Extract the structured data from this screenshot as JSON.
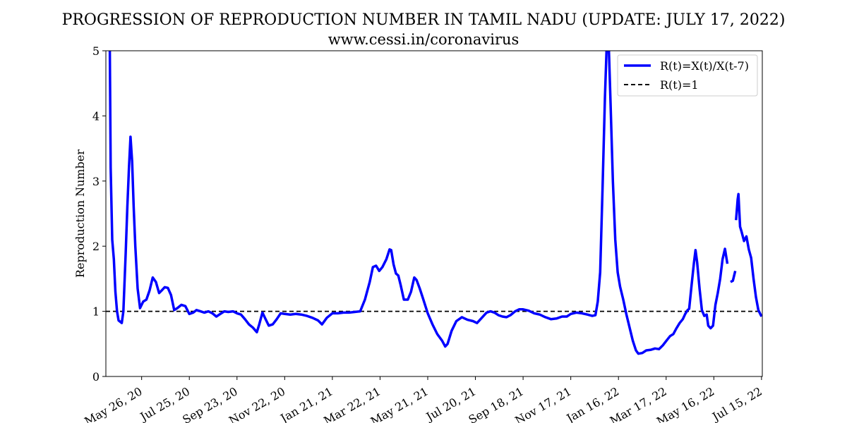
{
  "chart_data": {
    "type": "line",
    "title": "PROGRESSION OF REPRODUCTION NUMBER IN TAMIL NADU (UPDATE: JULY 17, 2022)",
    "subtitle": "www.cessi.in/coronavirus",
    "ylabel": "Reproduction Number",
    "xlabel": "",
    "ylim": [
      0,
      5
    ],
    "yticks": [
      0,
      1,
      2,
      3,
      4,
      5
    ],
    "x_range": [
      "2020-04-11",
      "2022-07-16"
    ],
    "xticks": [
      {
        "date": "2020-05-26",
        "label": "May 26, 20"
      },
      {
        "date": "2020-07-25",
        "label": "Jul 25, 20"
      },
      {
        "date": "2020-09-23",
        "label": "Sep 23, 20"
      },
      {
        "date": "2020-11-22",
        "label": "Nov 22, 20"
      },
      {
        "date": "2021-01-21",
        "label": "Jan 21, 21"
      },
      {
        "date": "2021-03-22",
        "label": "Mar 22, 21"
      },
      {
        "date": "2021-05-21",
        "label": "May 21, 21"
      },
      {
        "date": "2021-07-20",
        "label": "Jul 20, 21"
      },
      {
        "date": "2021-09-18",
        "label": "Sep 18, 21"
      },
      {
        "date": "2021-11-17",
        "label": "Nov 17, 21"
      },
      {
        "date": "2022-01-16",
        "label": "Jan 16, 22"
      },
      {
        "date": "2022-03-17",
        "label": "Mar 17, 22"
      },
      {
        "date": "2022-05-16",
        "label": "May 16, 22"
      },
      {
        "date": "2022-07-15",
        "label": "Jul 15, 22"
      }
    ],
    "legend_position": "top-right",
    "series": [
      {
        "name": "R(t)=X(t)/X(t-7)",
        "color": "#0000ff",
        "style": "solid",
        "segments": [
          [
            [
              "2020-04-16",
              5.0
            ],
            [
              "2020-04-17",
              3.2
            ],
            [
              "2020-04-19",
              2.1
            ],
            [
              "2020-04-21",
              1.8
            ],
            [
              "2020-04-23",
              1.3
            ],
            [
              "2020-04-25",
              1.0
            ],
            [
              "2020-04-27",
              0.86
            ],
            [
              "2020-04-29",
              0.84
            ],
            [
              "2020-05-01",
              0.82
            ],
            [
              "2020-05-03",
              1.0
            ],
            [
              "2020-05-06",
              1.9
            ],
            [
              "2020-05-08",
              2.6
            ],
            [
              "2020-05-10",
              3.2
            ],
            [
              "2020-05-12",
              3.68
            ],
            [
              "2020-05-14",
              3.3
            ],
            [
              "2020-05-16",
              2.6
            ],
            [
              "2020-05-18",
              2.0
            ],
            [
              "2020-05-21",
              1.35
            ],
            [
              "2020-05-24",
              1.05
            ],
            [
              "2020-05-28",
              1.15
            ],
            [
              "2020-06-01",
              1.18
            ],
            [
              "2020-06-05",
              1.32
            ],
            [
              "2020-06-09",
              1.52
            ],
            [
              "2020-06-13",
              1.45
            ],
            [
              "2020-06-17",
              1.28
            ],
            [
              "2020-06-21",
              1.33
            ],
            [
              "2020-06-24",
              1.37
            ],
            [
              "2020-06-28",
              1.36
            ],
            [
              "2020-07-02",
              1.25
            ],
            [
              "2020-07-06",
              1.02
            ],
            [
              "2020-07-10",
              1.05
            ],
            [
              "2020-07-15",
              1.1
            ],
            [
              "2020-07-20",
              1.08
            ],
            [
              "2020-07-25",
              0.96
            ],
            [
              "2020-07-30",
              0.98
            ],
            [
              "2020-08-03",
              1.02
            ],
            [
              "2020-08-08",
              1.0
            ],
            [
              "2020-08-13",
              0.98
            ],
            [
              "2020-08-18",
              1.0
            ],
            [
              "2020-08-23",
              0.97
            ],
            [
              "2020-08-28",
              0.92
            ],
            [
              "2020-09-02",
              0.96
            ],
            [
              "2020-09-07",
              1.0
            ],
            [
              "2020-09-12",
              0.99
            ],
            [
              "2020-09-18",
              1.0
            ],
            [
              "2020-09-23",
              0.97
            ],
            [
              "2020-09-28",
              0.95
            ],
            [
              "2020-10-03",
              0.88
            ],
            [
              "2020-10-08",
              0.8
            ],
            [
              "2020-10-13",
              0.75
            ],
            [
              "2020-10-18",
              0.68
            ],
            [
              "2020-10-21",
              0.8
            ],
            [
              "2020-10-25",
              0.98
            ],
            [
              "2020-10-29",
              0.88
            ],
            [
              "2020-11-02",
              0.78
            ],
            [
              "2020-11-07",
              0.8
            ],
            [
              "2020-11-12",
              0.88
            ],
            [
              "2020-11-17",
              0.97
            ],
            [
              "2020-11-22",
              0.96
            ],
            [
              "2020-11-29",
              0.95
            ],
            [
              "2020-12-06",
              0.96
            ],
            [
              "2020-12-13",
              0.95
            ],
            [
              "2020-12-20",
              0.93
            ],
            [
              "2020-12-27",
              0.9
            ],
            [
              "2021-01-03",
              0.86
            ],
            [
              "2021-01-08",
              0.8
            ],
            [
              "2021-01-14",
              0.9
            ],
            [
              "2021-01-21",
              0.97
            ],
            [
              "2021-01-28",
              0.97
            ],
            [
              "2021-02-04",
              0.98
            ],
            [
              "2021-02-11",
              0.98
            ],
            [
              "2021-02-18",
              0.99
            ],
            [
              "2021-02-25",
              1.0
            ],
            [
              "2021-03-03",
              1.18
            ],
            [
              "2021-03-09",
              1.45
            ],
            [
              "2021-03-13",
              1.68
            ],
            [
              "2021-03-17",
              1.7
            ],
            [
              "2021-03-21",
              1.62
            ],
            [
              "2021-03-25",
              1.68
            ],
            [
              "2021-03-30",
              1.8
            ],
            [
              "2021-04-03",
              1.95
            ],
            [
              "2021-04-05",
              1.94
            ],
            [
              "2021-04-08",
              1.72
            ],
            [
              "2021-04-11",
              1.58
            ],
            [
              "2021-04-14",
              1.55
            ],
            [
              "2021-04-17",
              1.4
            ],
            [
              "2021-04-21",
              1.18
            ],
            [
              "2021-04-26",
              1.18
            ],
            [
              "2021-04-30",
              1.3
            ],
            [
              "2021-05-04",
              1.52
            ],
            [
              "2021-05-07",
              1.48
            ],
            [
              "2021-05-11",
              1.35
            ],
            [
              "2021-05-15",
              1.2
            ],
            [
              "2021-05-21",
              0.97
            ],
            [
              "2021-05-27",
              0.8
            ],
            [
              "2021-06-02",
              0.65
            ],
            [
              "2021-06-08",
              0.55
            ],
            [
              "2021-06-12",
              0.46
            ],
            [
              "2021-06-15",
              0.5
            ],
            [
              "2021-06-20",
              0.7
            ],
            [
              "2021-06-26",
              0.85
            ],
            [
              "2021-07-03",
              0.91
            ],
            [
              "2021-07-10",
              0.87
            ],
            [
              "2021-07-17",
              0.85
            ],
            [
              "2021-07-22",
              0.82
            ],
            [
              "2021-07-28",
              0.9
            ],
            [
              "2021-08-03",
              0.98
            ],
            [
              "2021-08-08",
              1.0
            ],
            [
              "2021-08-13",
              0.98
            ],
            [
              "2021-08-18",
              0.94
            ],
            [
              "2021-08-23",
              0.92
            ],
            [
              "2021-08-28",
              0.91
            ],
            [
              "2021-09-02",
              0.94
            ],
            [
              "2021-09-08",
              1.0
            ],
            [
              "2021-09-13",
              1.03
            ],
            [
              "2021-09-18",
              1.03
            ],
            [
              "2021-09-25",
              1.01
            ],
            [
              "2021-10-02",
              0.97
            ],
            [
              "2021-10-09",
              0.95
            ],
            [
              "2021-10-16",
              0.91
            ],
            [
              "2021-10-23",
              0.88
            ],
            [
              "2021-10-30",
              0.89
            ],
            [
              "2021-11-06",
              0.92
            ],
            [
              "2021-11-12",
              0.92
            ],
            [
              "2021-11-17",
              0.96
            ],
            [
              "2021-11-24",
              0.98
            ],
            [
              "2021-12-01",
              0.97
            ],
            [
              "2021-12-08",
              0.95
            ],
            [
              "2021-12-14",
              0.93
            ],
            [
              "2021-12-18",
              0.94
            ],
            [
              "2021-12-21",
              1.15
            ],
            [
              "2021-12-24",
              1.6
            ],
            [
              "2021-12-27",
              2.9
            ],
            [
              "2021-12-30",
              4.3
            ],
            [
              "2022-01-01",
              5.0
            ],
            [
              "2022-01-04",
              5.0
            ],
            [
              "2022-01-06",
              4.2
            ],
            [
              "2022-01-09",
              3.0
            ],
            [
              "2022-01-12",
              2.1
            ],
            [
              "2022-01-15",
              1.6
            ],
            [
              "2022-01-18",
              1.38
            ],
            [
              "2022-01-22",
              1.18
            ],
            [
              "2022-01-26",
              0.95
            ],
            [
              "2022-01-30",
              0.75
            ],
            [
              "2022-02-03",
              0.55
            ],
            [
              "2022-02-07",
              0.4
            ],
            [
              "2022-02-10",
              0.35
            ],
            [
              "2022-02-15",
              0.36
            ],
            [
              "2022-02-20",
              0.4
            ],
            [
              "2022-02-26",
              0.41
            ],
            [
              "2022-03-03",
              0.43
            ],
            [
              "2022-03-08",
              0.42
            ],
            [
              "2022-03-13",
              0.48
            ],
            [
              "2022-03-18",
              0.56
            ],
            [
              "2022-03-22",
              0.62
            ],
            [
              "2022-03-26",
              0.65
            ],
            [
              "2022-03-30",
              0.74
            ],
            [
              "2022-04-03",
              0.82
            ],
            [
              "2022-04-07",
              0.88
            ],
            [
              "2022-04-10",
              0.96
            ],
            [
              "2022-04-13",
              1.02
            ],
            [
              "2022-04-15",
              1.04
            ],
            [
              "2022-04-18",
              1.4
            ],
            [
              "2022-04-21",
              1.75
            ],
            [
              "2022-04-23",
              1.94
            ],
            [
              "2022-04-25",
              1.75
            ],
            [
              "2022-04-28",
              1.35
            ],
            [
              "2022-05-01",
              1.02
            ],
            [
              "2022-05-04",
              0.93
            ],
            [
              "2022-05-07",
              0.95
            ],
            [
              "2022-05-09",
              0.78
            ],
            [
              "2022-05-12",
              0.74
            ],
            [
              "2022-05-15",
              0.78
            ],
            [
              "2022-05-18",
              1.1
            ],
            [
              "2022-05-21",
              1.28
            ],
            [
              "2022-05-24",
              1.5
            ],
            [
              "2022-05-27",
              1.8
            ],
            [
              "2022-05-30",
              1.96
            ],
            [
              "2022-06-02",
              1.73
            ]
          ],
          [
            [
              "2022-06-06",
              1.45
            ],
            [
              "2022-06-09",
              1.47
            ],
            [
              "2022-06-12",
              1.62
            ]
          ],
          [
            [
              "2022-06-13",
              2.4
            ],
            [
              "2022-06-15",
              2.72
            ],
            [
              "2022-06-16",
              2.8
            ],
            [
              "2022-06-18",
              2.3
            ],
            [
              "2022-06-20",
              2.22
            ],
            [
              "2022-06-23",
              2.08
            ],
            [
              "2022-06-26",
              2.15
            ],
            [
              "2022-06-29",
              1.95
            ],
            [
              "2022-07-02",
              1.82
            ],
            [
              "2022-07-05",
              1.5
            ],
            [
              "2022-07-08",
              1.22
            ],
            [
              "2022-07-11",
              1.02
            ],
            [
              "2022-07-15",
              0.92
            ]
          ]
        ]
      },
      {
        "name": "R(t)=1",
        "color": "#000000",
        "style": "dashed",
        "value": 1
      }
    ]
  }
}
